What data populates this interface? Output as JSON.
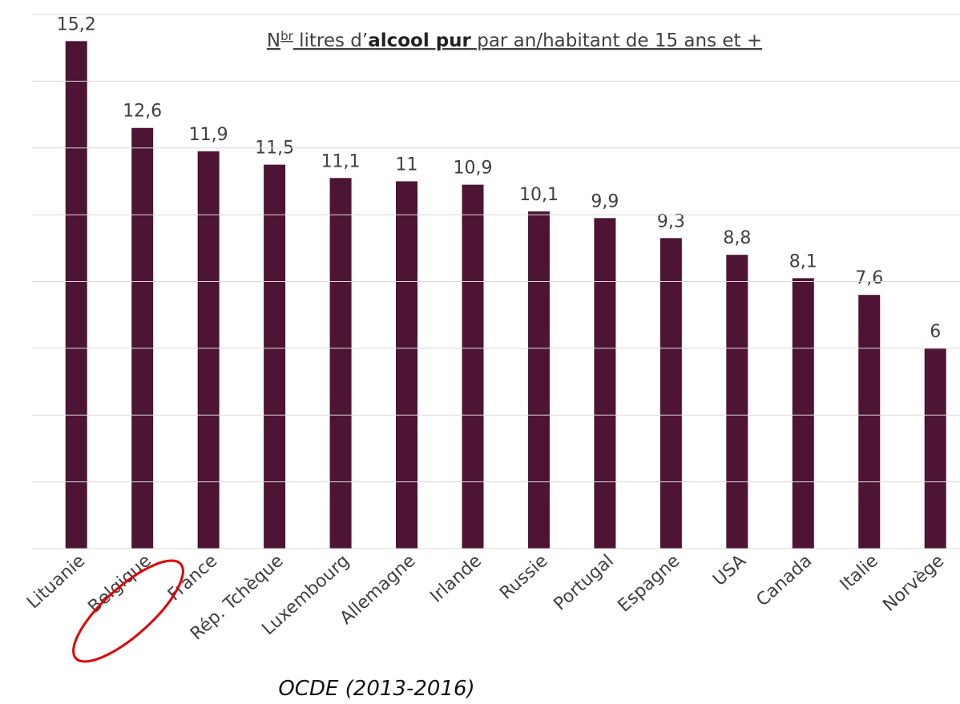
{
  "chart_data": {
    "type": "bar",
    "title_parts": [
      "N",
      "br",
      " litres d’",
      "alcool pur",
      " par an/habitant de 15 ans et +"
    ],
    "source": "OCDE (2013-2016)",
    "categories": [
      "Lituanie",
      "Belgique",
      "France",
      "Rép. Tchèque",
      "Luxembourg",
      "Allemagne",
      "Irlande",
      "Russie",
      "Portugal",
      "Espagne",
      "USA",
      "Canada",
      "Italie",
      "Norvège"
    ],
    "values": [
      15.2,
      12.6,
      11.9,
      11.5,
      11.1,
      11,
      10.9,
      10.1,
      9.9,
      9.3,
      8.8,
      8.1,
      7.6,
      6
    ],
    "value_labels": [
      "15,2",
      "12,6",
      "11,9",
      "11,5",
      "11,1",
      "11",
      "10,9",
      "10,1",
      "9,9",
      "9,3",
      "8,8",
      "8,1",
      "7,6",
      "6"
    ],
    "color": "#4e1433",
    "ylim": [
      0,
      16
    ],
    "yticks": [
      0,
      2,
      4,
      6,
      8,
      10,
      12,
      14,
      16
    ],
    "grid": true
  }
}
